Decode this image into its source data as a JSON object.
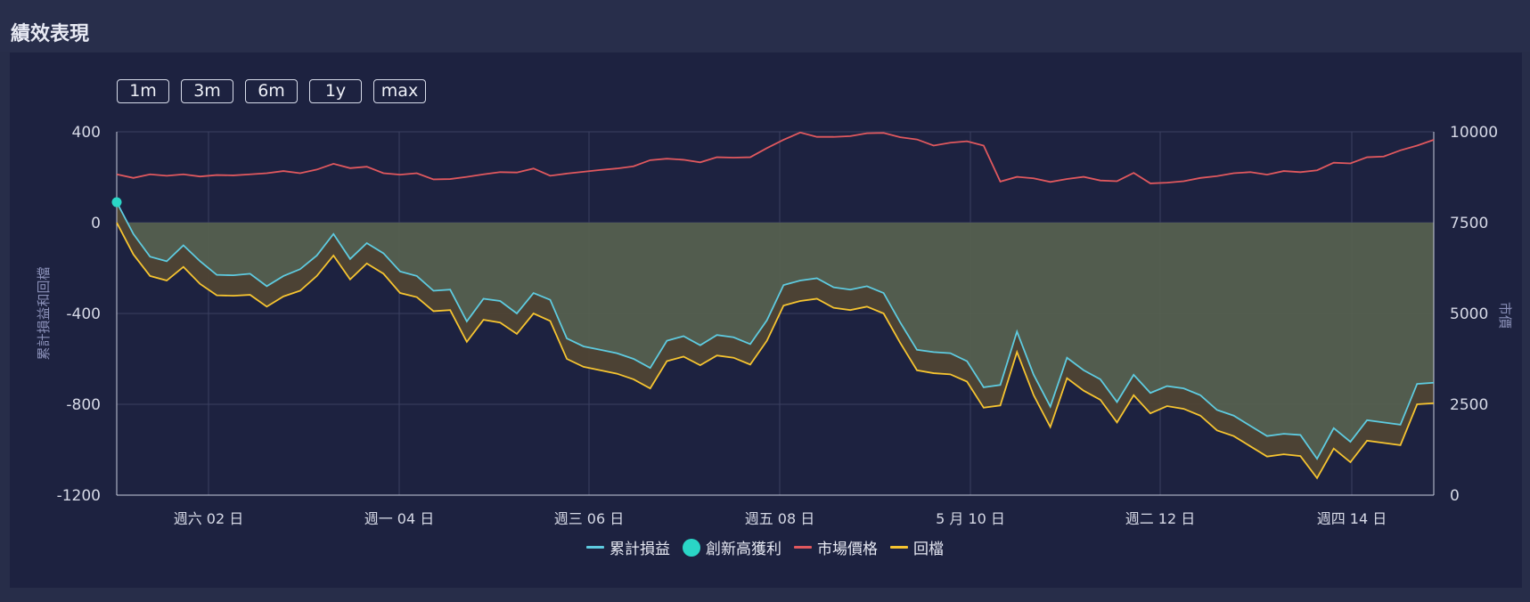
{
  "panel": {
    "title": "績效表現"
  },
  "range_buttons": [
    "1m",
    "3m",
    "6m",
    "1y",
    "max"
  ],
  "colors": {
    "cumulative": "#5ecbe0",
    "high": "#2ad6c6",
    "market": "#e0585e",
    "drawdown": "#f6c430",
    "fill_above": "#55604f",
    "fill_between": "#4f4434",
    "grid": "#3a4061",
    "axis_text": "#d6d9e6",
    "axis_title": "#8a90b8"
  },
  "chart_data": {
    "type": "line",
    "x_tick_labels": [
      "週六 02 日",
      "週一 04 日",
      "週三 06 日",
      "週五 08 日",
      "5 月 10 日",
      "週二 12 日",
      "週四 14 日"
    ],
    "y_left": {
      "label": "累計損益和回檔",
      "ticks": [
        "400",
        "0",
        "-400",
        "-800",
        "-1200"
      ],
      "range": [
        -1200,
        400
      ]
    },
    "y_right": {
      "label": "市價",
      "ticks": [
        "10000",
        "7500",
        "5000",
        "2500",
        "0"
      ],
      "range": [
        0,
        10000
      ]
    },
    "legend": [
      {
        "name": "累計損益",
        "marker": "line"
      },
      {
        "name": "創新高獲利",
        "marker": "dot"
      },
      {
        "name": "市場價格",
        "marker": "line"
      },
      {
        "name": "回檔",
        "marker": "line"
      }
    ],
    "series": [
      {
        "name": "累計損益",
        "values": [
          90,
          -50,
          -150,
          -170,
          -100,
          -170,
          -230,
          -232,
          -225,
          -280,
          -235,
          -205,
          -145,
          -50,
          -160,
          -90,
          -135,
          -215,
          -235,
          -300,
          -295,
          -435,
          -335,
          -345,
          -400,
          -310,
          -340,
          -510,
          -545,
          -560,
          -575,
          -600,
          -640,
          -520,
          -500,
          -540,
          -495,
          -505,
          -535,
          -430,
          -275,
          -255,
          -245,
          -285,
          -295,
          -280,
          -310,
          -440,
          -560,
          -570,
          -575,
          -610,
          -725,
          -715,
          -480,
          -670,
          -810,
          -595,
          -650,
          -690,
          -790,
          -670,
          -750,
          -720,
          -730,
          -760,
          -825,
          -850,
          -895,
          -940,
          -930,
          -935,
          -1040,
          -905,
          -965,
          -870,
          -880,
          -890,
          -710,
          -705
        ]
      },
      {
        "name": "回檔",
        "values": [
          0,
          -140,
          -235,
          -255,
          -195,
          -270,
          -320,
          -322,
          -318,
          -370,
          -325,
          -300,
          -235,
          -145,
          -250,
          -180,
          -225,
          -310,
          -328,
          -390,
          -385,
          -525,
          -428,
          -440,
          -490,
          -400,
          -433,
          -600,
          -635,
          -650,
          -665,
          -690,
          -730,
          -610,
          -590,
          -628,
          -585,
          -595,
          -625,
          -520,
          -365,
          -345,
          -335,
          -375,
          -385,
          -370,
          -400,
          -530,
          -650,
          -663,
          -668,
          -700,
          -815,
          -805,
          -570,
          -760,
          -900,
          -685,
          -740,
          -780,
          -880,
          -760,
          -840,
          -808,
          -820,
          -850,
          -915,
          -940,
          -985,
          -1030,
          -1020,
          -1028,
          -1125,
          -995,
          -1055,
          -960,
          -970,
          -980,
          -800,
          -795
        ]
      },
      {
        "name": "創新高獲利",
        "points": [
          {
            "index": 0,
            "value": 90
          }
        ]
      },
      {
        "name": "市場價格",
        "axis": "right",
        "values": [
          8830,
          8730,
          8830,
          8790,
          8830,
          8770,
          8810,
          8800,
          8830,
          8860,
          8920,
          8860,
          8960,
          9120,
          9000,
          9040,
          8860,
          8820,
          8860,
          8690,
          8700,
          8760,
          8830,
          8890,
          8880,
          8990,
          8790,
          8850,
          8900,
          8950,
          8990,
          9050,
          9220,
          9260,
          9230,
          9160,
          9300,
          9290,
          9300,
          9550,
          9780,
          9980,
          9860,
          9860,
          9880,
          9960,
          9970,
          9850,
          9790,
          9620,
          9700,
          9740,
          9620,
          8630,
          8760,
          8720,
          8620,
          8700,
          8760,
          8660,
          8640,
          8870,
          8580,
          8600,
          8640,
          8730,
          8780,
          8860,
          8890,
          8820,
          8920,
          8890,
          8940,
          9150,
          9130,
          9300,
          9320,
          9490,
          9620,
          9780
        ]
      }
    ]
  }
}
